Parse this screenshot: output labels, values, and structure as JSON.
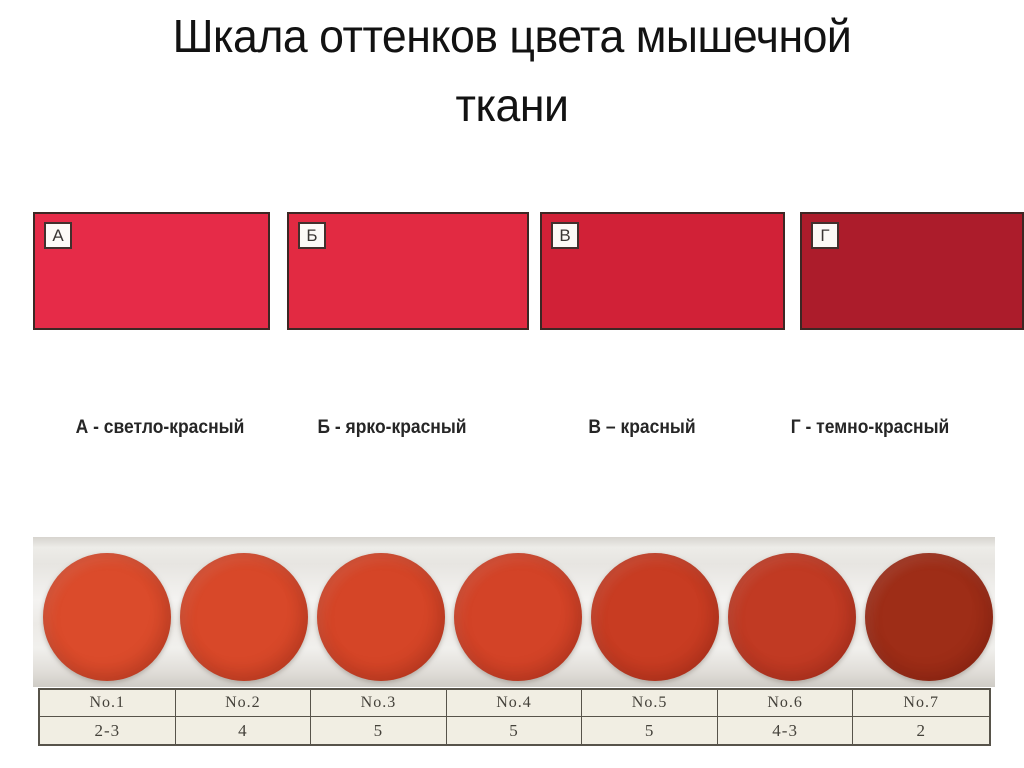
{
  "slide": {
    "title_lines": [
      "Шкала оттенков цвета мышечной",
      "ткани"
    ]
  },
  "shade_scale": {
    "swatches": [
      {
        "letter": "А",
        "caption": "А - светло-красный",
        "color": "#e62b48"
      },
      {
        "letter": "Б",
        "caption": "Б - ярко-красный",
        "color": "#e22a42"
      },
      {
        "letter": "В",
        "caption": "В – красный",
        "color": "#d12137"
      },
      {
        "letter": "Г",
        "caption": "Г - темно-красный",
        "color": "#ac1c2b"
      }
    ]
  },
  "samples": {
    "items": [
      {
        "number": "No.1",
        "score": "2-3",
        "disc_color": "#db4b2b"
      },
      {
        "number": "No.2",
        "score": "4",
        "disc_color": "#d84829"
      },
      {
        "number": "No.3",
        "score": "5",
        "disc_color": "#d54527"
      },
      {
        "number": "No.4",
        "score": "5",
        "disc_color": "#d34327"
      },
      {
        "number": "No.5",
        "score": "5",
        "disc_color": "#c83c22"
      },
      {
        "number": "No.6",
        "score": "4-3",
        "disc_color": "#c13a23"
      },
      {
        "number": "No.7",
        "score": "2",
        "disc_color": "#9e2d17"
      }
    ]
  }
}
